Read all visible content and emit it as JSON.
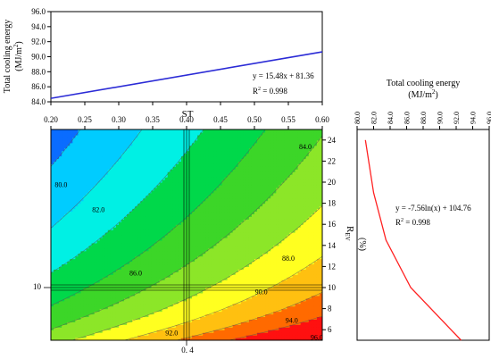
{
  "chart_data": [
    {
      "type": "line",
      "ylabel": "Total cooling energy",
      "yunit_prefix": "(MJ/m",
      "yunit_sup": "2",
      "yunit_suffix": ")",
      "x": [
        0.2,
        0.6
      ],
      "y": [
        84.46,
        90.65
      ],
      "xlim": [
        0.2,
        0.6
      ],
      "ylim": [
        84.0,
        96.0
      ],
      "yticks": [
        "84.0",
        "86.0",
        "88.0",
        "90.0",
        "92.0",
        "94.0",
        "96.0"
      ],
      "equation": "y = 15.48x + 81.36",
      "r2_prefix": "R",
      "r2_sup": "2",
      "r2_suffix": " = 0.998",
      "line_color": "#2b2bd6"
    },
    {
      "type": "heatmap",
      "xlabel": "ST",
      "ylabel_main": "R",
      "ylabel_sub": "EV",
      "yunit": "(%)",
      "xlim": [
        0.2,
        0.6
      ],
      "ylim": [
        5,
        25
      ],
      "xticks": [
        "0.20",
        "0.25",
        "0.30",
        "0.35",
        "0.40",
        "0.45",
        "0.50",
        "0.55",
        "0.60"
      ],
      "yticks": [
        "6",
        "8",
        "10",
        "12",
        "14",
        "16",
        "18",
        "20",
        "22",
        "24"
      ],
      "marker_x": 0.4,
      "marker_x_label": "0. 4",
      "marker_y": 10,
      "marker_y_label": "10",
      "levels": [
        80,
        82,
        84,
        86,
        88,
        90,
        92,
        94,
        96
      ],
      "level_colors": [
        "#0a6cff",
        "#00ccff",
        "#00f0e4",
        "#00d84a",
        "#3cd628",
        "#8ce628",
        "#ffff20",
        "#ffc010",
        "#ff6a00",
        "#ff1010"
      ],
      "contour_labels": [
        {
          "text": "80.0",
          "x": 0.215,
          "y": 19.8
        },
        {
          "text": "82.0",
          "x": 0.27,
          "y": 17.4
        },
        {
          "text": "84.0",
          "x": 0.575,
          "y": 23.4
        },
        {
          "text": "86.0",
          "x": 0.325,
          "y": 11.4
        },
        {
          "text": "88.0",
          "x": 0.55,
          "y": 12.8
        },
        {
          "text": "90.0",
          "x": 0.51,
          "y": 9.6
        },
        {
          "text": "92.0",
          "x": 0.378,
          "y": 5.7
        },
        {
          "text": "94.0",
          "x": 0.555,
          "y": 6.9
        },
        {
          "text": "96.0",
          "x": 0.592,
          "y": 5.3
        }
      ]
    },
    {
      "type": "line",
      "title": "Total cooling energy",
      "title_unit_prefix": "(MJ/m",
      "title_unit_sup": "2",
      "title_unit_suffix": ")",
      "xticks": [
        "80.0",
        "82.0",
        "84.0",
        "86.0",
        "88.0",
        "90.0",
        "92.0",
        "94.0",
        "96.0"
      ],
      "xlim": [
        80,
        96
      ],
      "ylim": [
        5,
        25
      ],
      "points": [
        [
          81.0,
          24.0
        ],
        [
          82.0,
          19.0
        ],
        [
          83.5,
          14.5
        ],
        [
          86.5,
          10.0
        ],
        [
          92.6,
          5.0
        ]
      ],
      "equation": "y = -7.56ln(x) + 104.76",
      "r2_prefix": "R",
      "r2_sup": "2",
      "r2_suffix": " = 0.998",
      "line_color": "#ff2020"
    }
  ]
}
